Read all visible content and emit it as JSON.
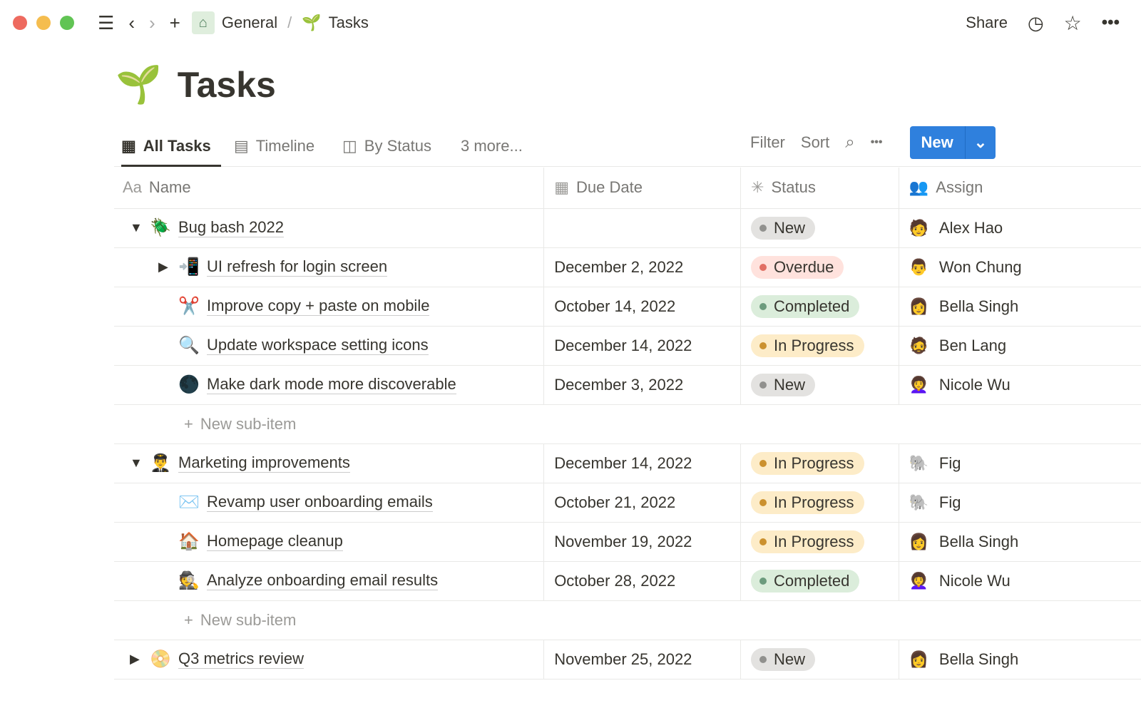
{
  "topbar": {
    "breadcrumb": [
      "General",
      "Tasks"
    ],
    "share": "Share",
    "icons": [
      "menu-icon",
      "back-icon",
      "forward-icon",
      "plus-icon",
      "home-icon",
      "sprout-icon",
      "clock-icon",
      "star-icon",
      "more-icon"
    ]
  },
  "page": {
    "emoji": "🌱",
    "title": "Tasks"
  },
  "tabs": [
    {
      "label": "All Tasks",
      "icon": "table-icon"
    },
    {
      "label": "Timeline",
      "icon": "timeline-icon"
    },
    {
      "label": "By Status",
      "icon": "board-icon"
    },
    {
      "label": "3 more..."
    }
  ],
  "toolbar": {
    "filter": "Filter",
    "sort": "Sort",
    "new": "New"
  },
  "columns": [
    {
      "label": "Name",
      "icon": "Aa"
    },
    {
      "label": "Due Date"
    },
    {
      "label": "Status"
    },
    {
      "label": "Assign"
    }
  ],
  "status_colors": {
    "New": {
      "bg": "#e3e2e0",
      "dot": "#91918e"
    },
    "Overdue": {
      "bg": "#ffe2dd",
      "dot": "#e16f64"
    },
    "Completed": {
      "bg": "#dbeddb",
      "dot": "#6c9b7d"
    },
    "In Progress": {
      "bg": "#fdecc8",
      "dot": "#cb912f"
    }
  },
  "rows": [
    {
      "type": "parent",
      "toggle": "open",
      "emoji": "🪲",
      "name": "Bug bash 2022",
      "date": "",
      "status": "New",
      "assignee": "Alex Hao"
    },
    {
      "type": "child",
      "toggle": "closed",
      "emoji": "📲",
      "name": "UI refresh for login screen",
      "date": "December 2, 2022",
      "status": "Overdue",
      "assignee": "Won Chung"
    },
    {
      "type": "child",
      "emoji": "✂️",
      "name": "Improve copy + paste on mobile",
      "date": "October 14, 2022",
      "status": "Completed",
      "assignee": "Bella Singh"
    },
    {
      "type": "child",
      "emoji": "🔍",
      "name": "Update workspace setting icons",
      "date": "December 14, 2022",
      "status": "In Progress",
      "assignee": "Ben Lang"
    },
    {
      "type": "child",
      "emoji": "🌑",
      "name": "Make dark mode more discoverable",
      "date": "December 3, 2022",
      "status": "New",
      "assignee": "Nicole Wu"
    },
    {
      "type": "add",
      "label": "New sub-item"
    },
    {
      "type": "parent",
      "toggle": "open",
      "emoji": "👨‍✈️",
      "name": "Marketing improvements",
      "date": "December 14, 2022",
      "status": "In Progress",
      "assignee": "Fig"
    },
    {
      "type": "child",
      "emoji": "✉️",
      "name": "Revamp user onboarding emails",
      "date": "October 21, 2022",
      "status": "In Progress",
      "assignee": "Fig"
    },
    {
      "type": "child",
      "emoji": "🏠",
      "name": "Homepage cleanup",
      "date": "November 19, 2022",
      "status": "In Progress",
      "assignee": "Bella Singh"
    },
    {
      "type": "child",
      "emoji": "🕵️",
      "name": "Analyze onboarding email results",
      "date": "October 28, 2022",
      "status": "Completed",
      "assignee": "Nicole Wu"
    },
    {
      "type": "add",
      "label": "New sub-item"
    },
    {
      "type": "parent",
      "toggle": "closed",
      "emoji": "📀",
      "name": "Q3 metrics review",
      "date": "November 25, 2022",
      "status": "New",
      "assignee": "Bella Singh"
    }
  ]
}
